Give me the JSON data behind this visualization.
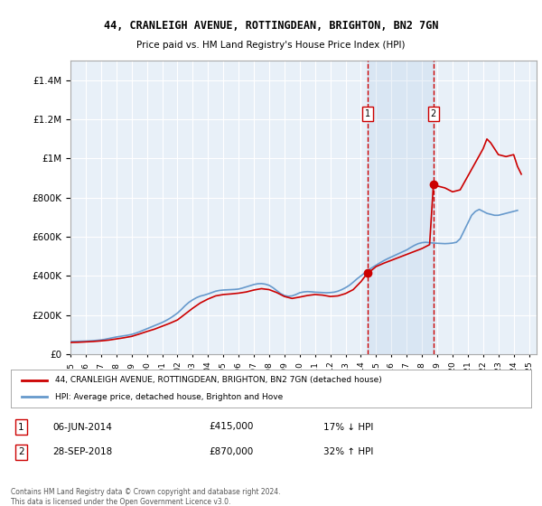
{
  "title": "44, CRANLEIGH AVENUE, ROTTINGDEAN, BRIGHTON, BN2 7GN",
  "subtitle": "Price paid vs. HM Land Registry's House Price Index (HPI)",
  "xlabel": "",
  "ylabel": "",
  "background_color": "#ffffff",
  "plot_bg_color": "#e8f0f8",
  "grid_color": "#ffffff",
  "sale1_date_x": 2014.44,
  "sale1_price": 415000,
  "sale1_label": "06-JUN-2014",
  "sale1_pct": "17% ↓ HPI",
  "sale2_date_x": 2018.75,
  "sale2_price": 870000,
  "sale2_label": "28-SEP-2018",
  "sale2_pct": "32% ↑ HPI",
  "ylim": [
    0,
    1500000
  ],
  "xlim": [
    1995,
    2025.5
  ],
  "line_color_property": "#cc0000",
  "line_color_hpi": "#6699cc",
  "legend_label_property": "44, CRANLEIGH AVENUE, ROTTINGDEAN, BRIGHTON, BN2 7GN (detached house)",
  "legend_label_hpi": "HPI: Average price, detached house, Brighton and Hove",
  "footnote": "Contains HM Land Registry data © Crown copyright and database right 2024.\nThis data is licensed under the Open Government Licence v3.0.",
  "hpi_data": {
    "years": [
      1995,
      1995.25,
      1995.5,
      1995.75,
      1996,
      1996.25,
      1996.5,
      1996.75,
      1997,
      1997.25,
      1997.5,
      1997.75,
      1998,
      1998.25,
      1998.5,
      1998.75,
      1999,
      1999.25,
      1999.5,
      1999.75,
      2000,
      2000.25,
      2000.5,
      2000.75,
      2001,
      2001.25,
      2001.5,
      2001.75,
      2002,
      2002.25,
      2002.5,
      2002.75,
      2003,
      2003.25,
      2003.5,
      2003.75,
      2004,
      2004.25,
      2004.5,
      2004.75,
      2005,
      2005.25,
      2005.5,
      2005.75,
      2006,
      2006.25,
      2006.5,
      2006.75,
      2007,
      2007.25,
      2007.5,
      2007.75,
      2008,
      2008.25,
      2008.5,
      2008.75,
      2009,
      2009.25,
      2009.5,
      2009.75,
      2010,
      2010.25,
      2010.5,
      2010.75,
      2011,
      2011.25,
      2011.5,
      2011.75,
      2012,
      2012.25,
      2012.5,
      2012.75,
      2013,
      2013.25,
      2013.5,
      2013.75,
      2014,
      2014.25,
      2014.5,
      2014.75,
      2015,
      2015.25,
      2015.5,
      2015.75,
      2016,
      2016.25,
      2016.5,
      2016.75,
      2017,
      2017.25,
      2017.5,
      2017.75,
      2018,
      2018.25,
      2018.5,
      2018.75,
      2019,
      2019.25,
      2019.5,
      2019.75,
      2020,
      2020.25,
      2020.5,
      2020.75,
      2021,
      2021.25,
      2021.5,
      2021.75,
      2022,
      2022.25,
      2022.5,
      2022.75,
      2023,
      2023.25,
      2023.5,
      2023.75,
      2024,
      2024.25
    ],
    "values": [
      65000,
      65500,
      66000,
      66500,
      67000,
      68000,
      69500,
      71000,
      73000,
      76000,
      80000,
      84000,
      88000,
      91000,
      94000,
      97000,
      101000,
      107000,
      114000,
      122000,
      130000,
      138000,
      146000,
      154000,
      162000,
      172000,
      183000,
      196000,
      210000,
      228000,
      248000,
      265000,
      278000,
      289000,
      297000,
      302000,
      308000,
      315000,
      322000,
      326000,
      328000,
      329000,
      330000,
      331000,
      333000,
      338000,
      344000,
      350000,
      356000,
      360000,
      361000,
      358000,
      352000,
      340000,
      325000,
      310000,
      300000,
      296000,
      298000,
      305000,
      314000,
      318000,
      320000,
      319000,
      317000,
      316000,
      315000,
      314000,
      315000,
      317000,
      322000,
      330000,
      340000,
      352000,
      368000,
      385000,
      400000,
      415000,
      430000,
      443000,
      455000,
      467000,
      478000,
      488000,
      497000,
      506000,
      515000,
      524000,
      533000,
      545000,
      556000,
      565000,
      570000,
      572000,
      570000,
      568000,
      567000,
      566000,
      565000,
      566000,
      568000,
      572000,
      590000,
      630000,
      670000,
      710000,
      730000,
      740000,
      730000,
      720000,
      715000,
      710000,
      710000,
      715000,
      720000,
      725000,
      730000,
      735000
    ]
  },
  "property_data": {
    "years": [
      1995,
      1995.5,
      1996,
      1996.5,
      1997,
      1997.5,
      1998,
      1998.5,
      1999,
      1999.5,
      2000,
      2000.5,
      2001,
      2001.5,
      2002,
      2002.5,
      2003,
      2003.5,
      2004,
      2004.5,
      2005,
      2005.5,
      2006,
      2006.5,
      2007,
      2007.5,
      2008,
      2008.5,
      2009,
      2009.5,
      2010,
      2010.5,
      2011,
      2011.5,
      2012,
      2012.5,
      2013,
      2013.5,
      2014,
      2014.44,
      2014.5,
      2014.75,
      2015,
      2015.5,
      2016,
      2016.5,
      2017,
      2017.5,
      2018,
      2018.5,
      2018.75,
      2019,
      2019.5,
      2020,
      2020.5,
      2021,
      2021.5,
      2022,
      2022.25,
      2022.5,
      2022.75,
      2023,
      2023.5,
      2024,
      2024.25,
      2024.5
    ],
    "values": [
      60000,
      61000,
      63000,
      65000,
      68000,
      72000,
      78000,
      84000,
      91000,
      103000,
      116000,
      128000,
      143000,
      158000,
      175000,
      205000,
      235000,
      262000,
      282000,
      298000,
      305000,
      308000,
      312000,
      318000,
      328000,
      335000,
      330000,
      315000,
      295000,
      285000,
      292000,
      300000,
      305000,
      302000,
      295000,
      298000,
      310000,
      330000,
      370000,
      415000,
      418000,
      432000,
      448000,
      465000,
      480000,
      495000,
      510000,
      525000,
      540000,
      560000,
      870000,
      860000,
      850000,
      830000,
      840000,
      910000,
      980000,
      1050000,
      1100000,
      1080000,
      1050000,
      1020000,
      1010000,
      1020000,
      960000,
      920000
    ]
  }
}
